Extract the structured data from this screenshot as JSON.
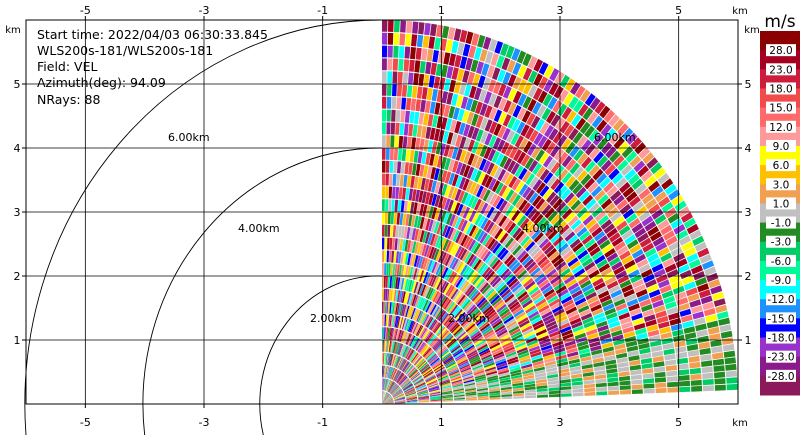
{
  "chart_data": {
    "type": "heatmap",
    "subtype": "radar-ppi-sector",
    "info": {
      "start_time": "Start time: 2022/04/03 06:30:33.845",
      "instrument": "WLS200s-181/WLS200s-181",
      "field": "Field: VEL",
      "azimuth": "Azimuth(deg): 94.09",
      "nrays": "NRays: 88"
    },
    "x_axis": {
      "unit": "km",
      "range": [
        -6.0,
        6.0
      ],
      "ticks": [
        "-5",
        "-3",
        "-1",
        "1",
        "3",
        "5"
      ]
    },
    "y_axis": {
      "unit": "km",
      "range": [
        0.0,
        6.0
      ],
      "ticks": [
        "1",
        "2",
        "3",
        "4",
        "5"
      ]
    },
    "grid": true,
    "range_rings": [
      {
        "radius_km": 2.0,
        "label": "2.00km"
      },
      {
        "radius_km": 4.0,
        "label": "4.00km"
      },
      {
        "radius_km": 6.0,
        "label": "6.00km"
      }
    ],
    "ring_labels_in_sector": [
      "2.00km",
      "4.00km",
      "6.00km"
    ],
    "sector": {
      "azimuth_start_deg": 0,
      "azimuth_end_deg": 88,
      "n_rays": 88,
      "max_range_km": 6.0
    },
    "colorbar": {
      "unit": "m/s",
      "labels": [
        "28.0",
        "23.0",
        "18.0",
        "15.0",
        "12.0",
        "9.0",
        "6.0",
        "3.0",
        "1.0",
        "-1.0",
        "-3.0",
        "-6.0",
        "-9.0",
        "-12.0",
        "-15.0",
        "-18.0",
        "-23.0",
        "-28.0"
      ],
      "colors": [
        "#8b0000",
        "#a50021",
        "#cd1c3c",
        "#f04a4a",
        "#ff6a6a",
        "#ff9a9a",
        "#ffff00",
        "#ffc000",
        "#f0a050",
        "#c0c0c0",
        "#228b22",
        "#00cd66",
        "#00fa9a",
        "#00ffff",
        "#1e90ff",
        "#0000ff",
        "#9932cc",
        "#8b1a8b",
        "#8b1a5a"
      ]
    }
  }
}
